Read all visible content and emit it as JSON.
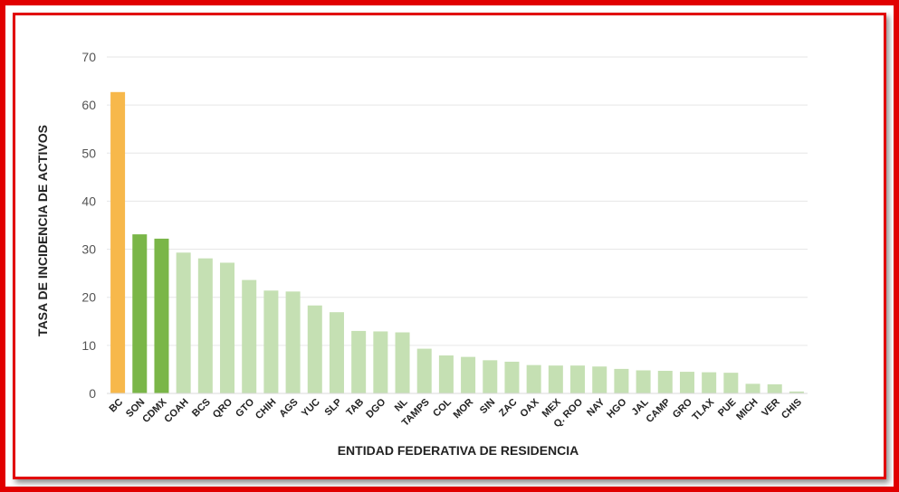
{
  "chart_data": {
    "type": "bar",
    "xlabel": "ENTIDAD FEDERATIVA DE RESIDENCIA",
    "ylabel": "TASA DE INCIDENCIA DE ACTIVOS",
    "ylim": [
      0,
      70
    ],
    "yticks": [
      "0",
      "10",
      "20",
      "30",
      "40",
      "50",
      "60",
      "70"
    ],
    "grid": true,
    "categories": [
      "BC",
      "SON",
      "CDMX",
      "COAH",
      "BCS",
      "QRO",
      "GTO",
      "CHIH",
      "AGS",
      "YUC",
      "SLP",
      "TAB",
      "DGO",
      "NL",
      "TAMPS",
      "COL",
      "MOR",
      "SIN",
      "ZAC",
      "OAX",
      "MEX",
      "Q. ROO",
      "NAY",
      "HGO",
      "JAL",
      "CAMP",
      "GRO",
      "TLAX",
      "PUE",
      "MICH",
      "VER",
      "CHIS"
    ],
    "values": [
      62.7,
      33.1,
      32.2,
      29.3,
      28.1,
      27.2,
      23.6,
      21.4,
      21.2,
      18.3,
      16.9,
      13.0,
      12.9,
      12.7,
      9.3,
      7.9,
      7.6,
      6.9,
      6.6,
      5.9,
      5.8,
      5.8,
      5.6,
      5.1,
      4.8,
      4.7,
      4.5,
      4.4,
      4.3,
      2.0,
      1.9,
      0.4
    ],
    "bar_colors": [
      "#f7b84b",
      "#7ab648",
      "#7ab648",
      "#c5e0b3",
      "#c5e0b3",
      "#c5e0b3",
      "#c5e0b3",
      "#c5e0b3",
      "#c5e0b3",
      "#c5e0b3",
      "#c5e0b3",
      "#c5e0b3",
      "#c5e0b3",
      "#c5e0b3",
      "#c5e0b3",
      "#c5e0b3",
      "#c5e0b3",
      "#c5e0b3",
      "#c5e0b3",
      "#c5e0b3",
      "#c5e0b3",
      "#c5e0b3",
      "#c5e0b3",
      "#c5e0b3",
      "#c5e0b3",
      "#c5e0b3",
      "#c5e0b3",
      "#c5e0b3",
      "#c5e0b3",
      "#c5e0b3",
      "#c5e0b3",
      "#c5e0b3"
    ],
    "frame_color": "#e10000",
    "grid_color": "#e6e6e6"
  }
}
